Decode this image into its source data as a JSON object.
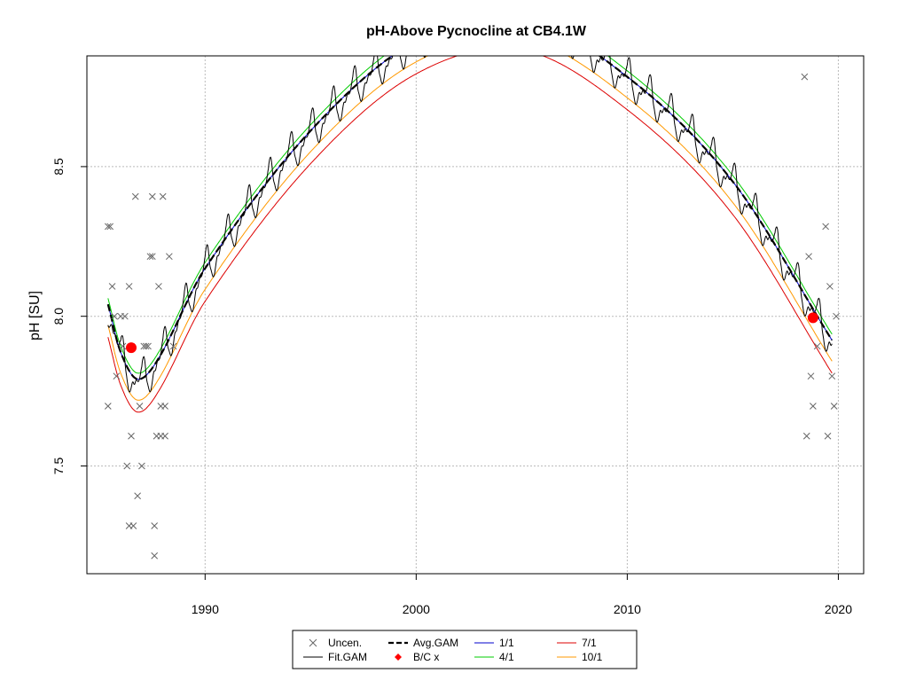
{
  "chart_data": {
    "type": "line",
    "title": "pH-Above Pycnocline at CB4.1W",
    "xlabel": "",
    "ylabel": "pH [SU]",
    "xlim": [
      1984.4,
      2021.2
    ],
    "ylim": [
      7.14,
      8.87
    ],
    "x_ticks": [
      1990,
      2000,
      2010,
      2020
    ],
    "y_ticks": [
      7.5,
      8.0,
      8.5
    ],
    "x_tick_labels": [
      "1990",
      "2000",
      "2010",
      "2020"
    ],
    "y_tick_labels": [
      "7.5",
      "8.0",
      "8.5"
    ],
    "grid": true,
    "legend": {
      "position": "bottom-center",
      "entries": [
        {
          "label": "Uncen.",
          "symbol": "x",
          "color": "#666666"
        },
        {
          "label": "Avg.GAM",
          "symbol": "dash",
          "color": "#000000"
        },
        {
          "label": "1/1",
          "symbol": "line",
          "color": "#0000cc"
        },
        {
          "label": "7/1",
          "symbol": "line",
          "color": "#dd0000"
        },
        {
          "label": "Fit.GAM",
          "symbol": "line",
          "color": "#000000"
        },
        {
          "label": "B/C x",
          "symbol": "diamond",
          "color": "#ff0000"
        },
        {
          "label": "4/1",
          "symbol": "line",
          "color": "#00cc00"
        },
        {
          "label": "10/1",
          "symbol": "line",
          "color": "#ff9900"
        }
      ]
    },
    "avg_gam_knots": [
      {
        "x": 1985.4,
        "y": 8.04
      },
      {
        "x": 1986.0,
        "y": 7.88
      },
      {
        "x": 1986.8,
        "y": 7.79
      },
      {
        "x": 1987.8,
        "y": 7.86
      },
      {
        "x": 1990.0,
        "y": 8.16
      },
      {
        "x": 1995.0,
        "y": 8.62
      },
      {
        "x": 2000.0,
        "y": 8.92
      },
      {
        "x": 2005.0,
        "y": 9.0
      },
      {
        "x": 2010.0,
        "y": 8.8
      },
      {
        "x": 2015.0,
        "y": 8.45
      },
      {
        "x": 2019.7,
        "y": 7.92
      }
    ],
    "seasonal_offsets": [
      {
        "name": "1/1",
        "color": "#0000cc",
        "offset": 0.0
      },
      {
        "name": "4/1",
        "color": "#00cc00",
        "offset": 0.02
      },
      {
        "name": "7/1",
        "color": "#dd0000",
        "offset": -0.11
      },
      {
        "name": "10/1",
        "color": "#ff9900",
        "offset": -0.07
      }
    ],
    "uncensored_points": [
      [
        1985.4,
        8.3
      ],
      [
        1985.5,
        8.3
      ],
      [
        1985.4,
        7.7
      ],
      [
        1985.6,
        8.1
      ],
      [
        1985.7,
        8.0
      ],
      [
        1985.8,
        7.8
      ],
      [
        1986.0,
        8.0
      ],
      [
        1986.2,
        8.0
      ],
      [
        1986.1,
        7.9
      ],
      [
        1986.3,
        7.5
      ],
      [
        1986.4,
        8.1
      ],
      [
        1986.4,
        7.3
      ],
      [
        1986.5,
        7.6
      ],
      [
        1986.6,
        7.3
      ],
      [
        1986.7,
        8.4
      ],
      [
        1986.8,
        7.4
      ],
      [
        1986.9,
        7.7
      ],
      [
        1987.0,
        7.5
      ],
      [
        1987.1,
        7.9
      ],
      [
        1987.2,
        7.9
      ],
      [
        1987.4,
        8.2
      ],
      [
        1987.5,
        8.2
      ],
      [
        1987.5,
        8.4
      ],
      [
        1987.6,
        7.3
      ],
      [
        1987.6,
        7.2
      ],
      [
        1987.7,
        7.6
      ],
      [
        1987.8,
        8.1
      ],
      [
        1987.9,
        7.6
      ],
      [
        1987.9,
        7.7
      ],
      [
        1988.0,
        8.4
      ],
      [
        1988.1,
        7.6
      ],
      [
        1988.3,
        8.2
      ],
      [
        1988.5,
        7.9
      ],
      [
        1988.1,
        7.7
      ],
      [
        1987.3,
        7.9
      ],
      [
        2018.4,
        8.8
      ],
      [
        2018.5,
        7.6
      ],
      [
        2018.6,
        8.2
      ],
      [
        2018.7,
        7.8
      ],
      [
        2018.8,
        7.7
      ],
      [
        2019.0,
        7.9
      ],
      [
        2019.4,
        8.3
      ],
      [
        2019.5,
        7.6
      ],
      [
        2019.6,
        8.1
      ],
      [
        2019.7,
        7.8
      ],
      [
        2019.8,
        7.7
      ],
      [
        2019.9,
        8.0
      ]
    ],
    "bc_points": [
      [
        1986.5,
        7.895
      ],
      [
        2018.8,
        7.995
      ]
    ]
  }
}
